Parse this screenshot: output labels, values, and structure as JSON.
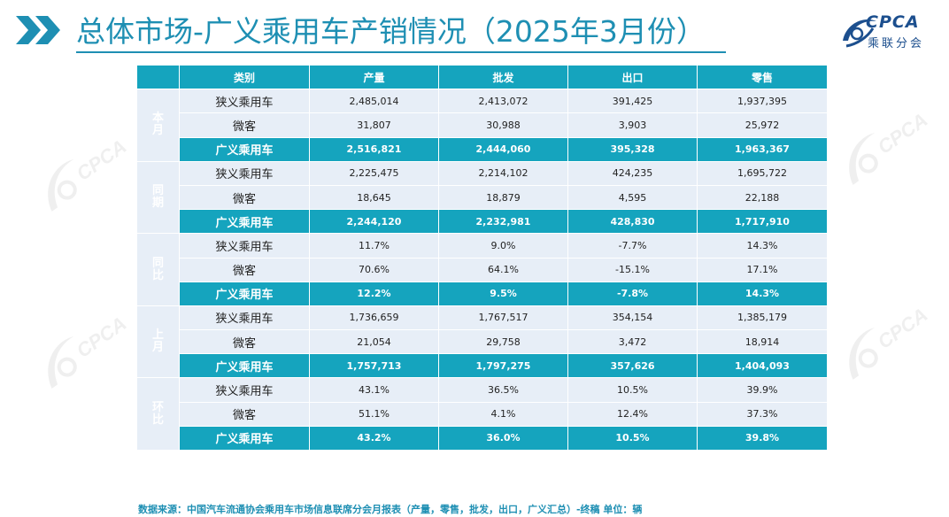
{
  "header": {
    "title": "总体市场-广义乘用车产销情况（2025年3月份）",
    "logo_text": "CPCA",
    "logo_cn": "乘联分会",
    "logo_small": "CPCA"
  },
  "colors": {
    "accent": "#15a4be",
    "row_light": "#e7eef7",
    "title": "#1e8fb3",
    "logo": "#1c4f8e"
  },
  "table": {
    "headers": [
      "类别",
      "产量",
      "批发",
      "出口",
      "零售"
    ],
    "groups": [
      {
        "label": "本月",
        "rows": [
          [
            "狭义乘用车",
            "2,485,014",
            "2,413,072",
            "391,425",
            "1,937,395"
          ],
          [
            "微客",
            "31,807",
            "30,988",
            "3,903",
            "25,972"
          ],
          [
            "广义乘用车",
            "2,516,821",
            "2,444,060",
            "395,328",
            "1,963,367"
          ]
        ]
      },
      {
        "label": "同期",
        "rows": [
          [
            "狭义乘用车",
            "2,225,475",
            "2,214,102",
            "424,235",
            "1,695,722"
          ],
          [
            "微客",
            "18,645",
            "18,879",
            "4,595",
            "22,188"
          ],
          [
            "广义乘用车",
            "2,244,120",
            "2,232,981",
            "428,830",
            "1,717,910"
          ]
        ]
      },
      {
        "label": "同比",
        "rows": [
          [
            "狭义乘用车",
            "11.7%",
            "9.0%",
            "-7.7%",
            "14.3%"
          ],
          [
            "微客",
            "70.6%",
            "64.1%",
            "-15.1%",
            "17.1%"
          ],
          [
            "广义乘用车",
            "12.2%",
            "9.5%",
            "-7.8%",
            "14.3%"
          ]
        ]
      },
      {
        "label": "上月",
        "rows": [
          [
            "狭义乘用车",
            "1,736,659",
            "1,767,517",
            "354,154",
            "1,385,179"
          ],
          [
            "微客",
            "21,054",
            "29,758",
            "3,472",
            "18,914"
          ],
          [
            "广义乘用车",
            "1,757,713",
            "1,797,275",
            "357,626",
            "1,404,093"
          ]
        ]
      },
      {
        "label": "环比",
        "rows": [
          [
            "狭义乘用车",
            "43.1%",
            "36.5%",
            "10.5%",
            "39.9%"
          ],
          [
            "微客",
            "51.1%",
            "4.1%",
            "12.4%",
            "37.3%"
          ],
          [
            "广义乘用车",
            "43.2%",
            "36.0%",
            "10.5%",
            "39.8%"
          ]
        ]
      }
    ]
  },
  "footer": {
    "source": "数据来源：中国汽车流通协会乘用车市场信息联席分会月报表（产量，零售，批发，出口，广义汇总）-终稿   单位：辆"
  }
}
